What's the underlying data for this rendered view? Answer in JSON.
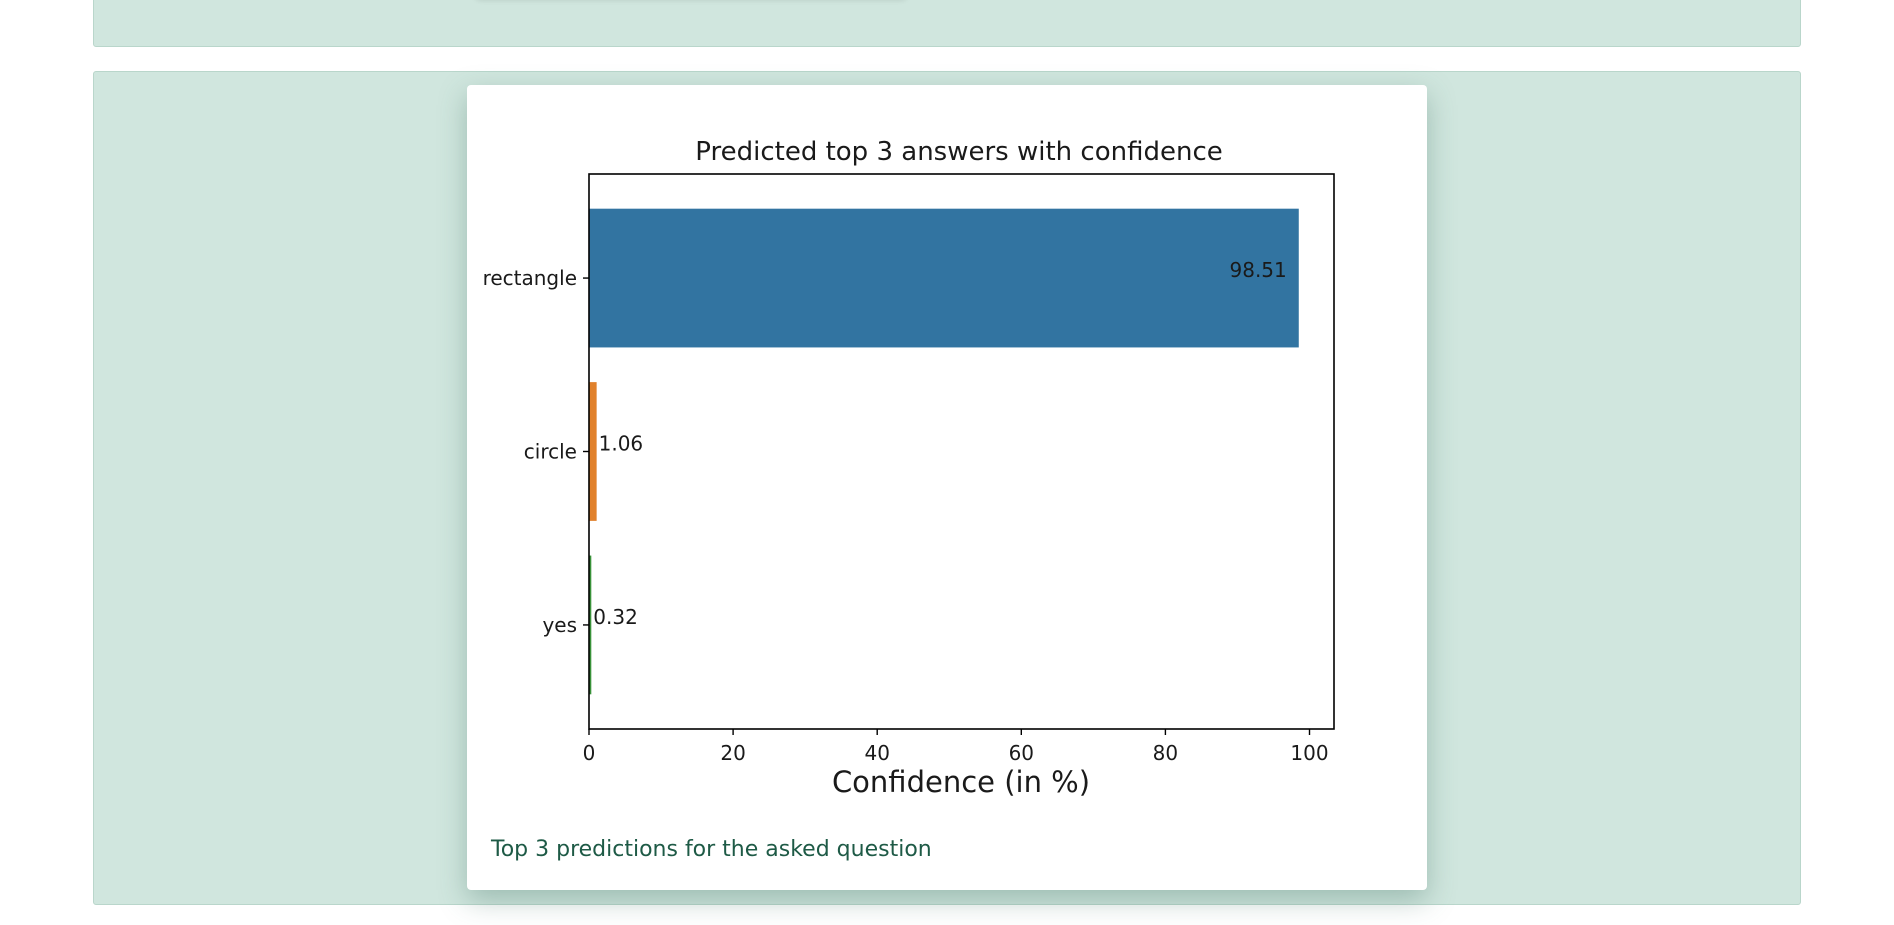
{
  "caption": "Top 3 predictions for the asked question",
  "chart_data": {
    "type": "bar",
    "orientation": "horizontal",
    "title": "Predicted top 3 answers with confidence",
    "xlabel": "Confidence (in %)",
    "ylabel": "",
    "categories": [
      "rectangle",
      "circle",
      "yes"
    ],
    "values": [
      98.51,
      1.06,
      0.32
    ],
    "data_labels": [
      "98.51",
      "1.06",
      "0.32"
    ],
    "colors": [
      "#3274a1",
      "#e1812c",
      "#3a923a"
    ],
    "xlim": [
      0,
      103.4
    ],
    "xticks": [
      0,
      20,
      40,
      60,
      80,
      100
    ],
    "grid": false,
    "legend": "none"
  }
}
